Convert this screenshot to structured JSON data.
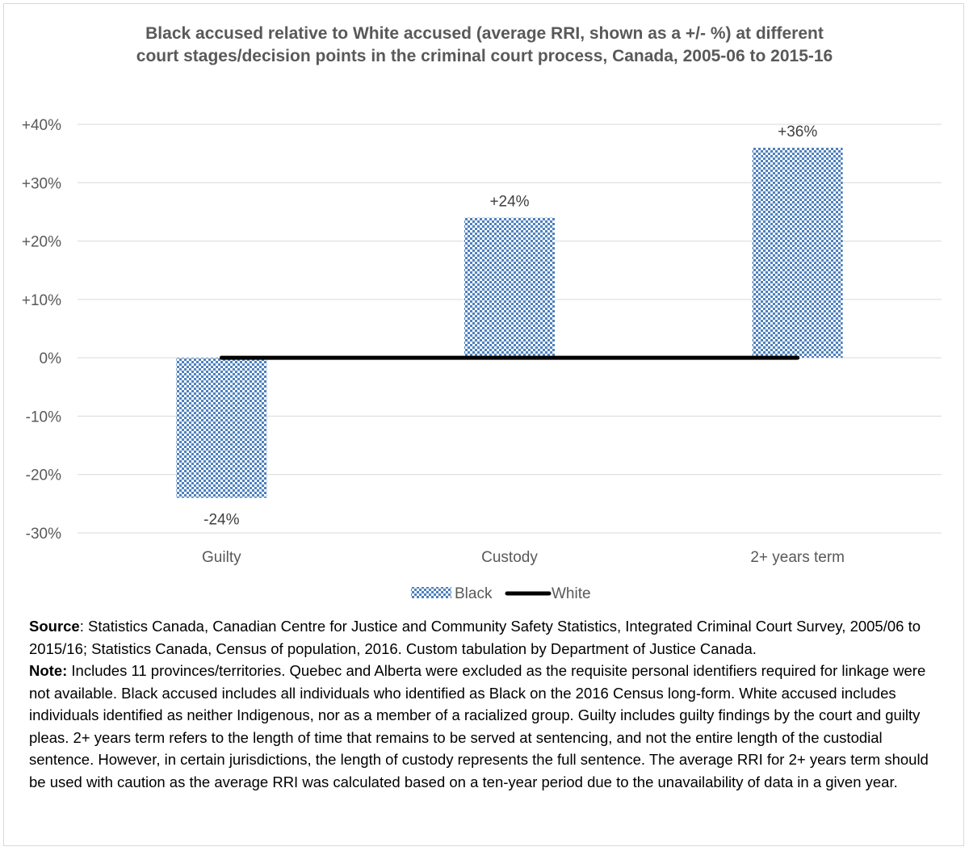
{
  "chart_data": {
    "type": "bar",
    "title_lines": [
      "Black accused relative to White accused (average RRI, shown as a +/- %) at different",
      "court stages/decision points in the criminal court process, Canada, 2005-06 to 2015-16"
    ],
    "categories": [
      "Guilty",
      "Custody",
      "2+ years term"
    ],
    "series": [
      {
        "name": "Black",
        "kind": "bar",
        "values": [
          -24,
          24,
          36
        ],
        "labels": [
          "-24%",
          "+24%",
          "+36%"
        ]
      },
      {
        "name": "White",
        "kind": "line",
        "values": [
          0,
          0,
          0
        ]
      }
    ],
    "yticks": [
      {
        "value": 40,
        "label": "+40%"
      },
      {
        "value": 30,
        "label": "+30%"
      },
      {
        "value": 20,
        "label": "+20%"
      },
      {
        "value": 10,
        "label": "+10%"
      },
      {
        "value": 0,
        "label": "0%"
      },
      {
        "value": -10,
        "label": "-10%"
      },
      {
        "value": -20,
        "label": "-20%"
      },
      {
        "value": -30,
        "label": "-30%"
      }
    ],
    "ylim": [
      -30,
      40
    ],
    "grid": true,
    "legend_position": "bottom",
    "colors": {
      "bar_pattern": "#4f81bd",
      "line": "#000000",
      "grid": "#d9d9d9"
    }
  },
  "notes": {
    "source_label": "Source",
    "source_text": ": Statistics Canada, Canadian Centre for Justice and Community Safety Statistics, Integrated Criminal Court Survey, 2005/06 to 2015/16; Statistics Canada, Census of population, 2016. Custom tabulation by Department of Justice Canada.",
    "note_label": "Note:",
    "note_text": " Includes 11 provinces/territories. Quebec and Alberta were excluded as the requisite personal identifiers required for linkage were not available. Black accused includes all individuals who identified as Black on the 2016 Census long-form. White accused includes individuals identified as neither Indigenous, nor as a member of a racialized group. Guilty includes guilty findings by the court and guilty pleas. 2+ years term refers to the length of time that remains to be served at sentencing, and not the entire length of the custodial sentence. However, in certain jurisdictions, the length of custody represents the full sentence. The average RRI for 2+ years term should be used with caution as the average RRI was calculated based on a ten-year period due to the unavailability of data in a given year."
  }
}
